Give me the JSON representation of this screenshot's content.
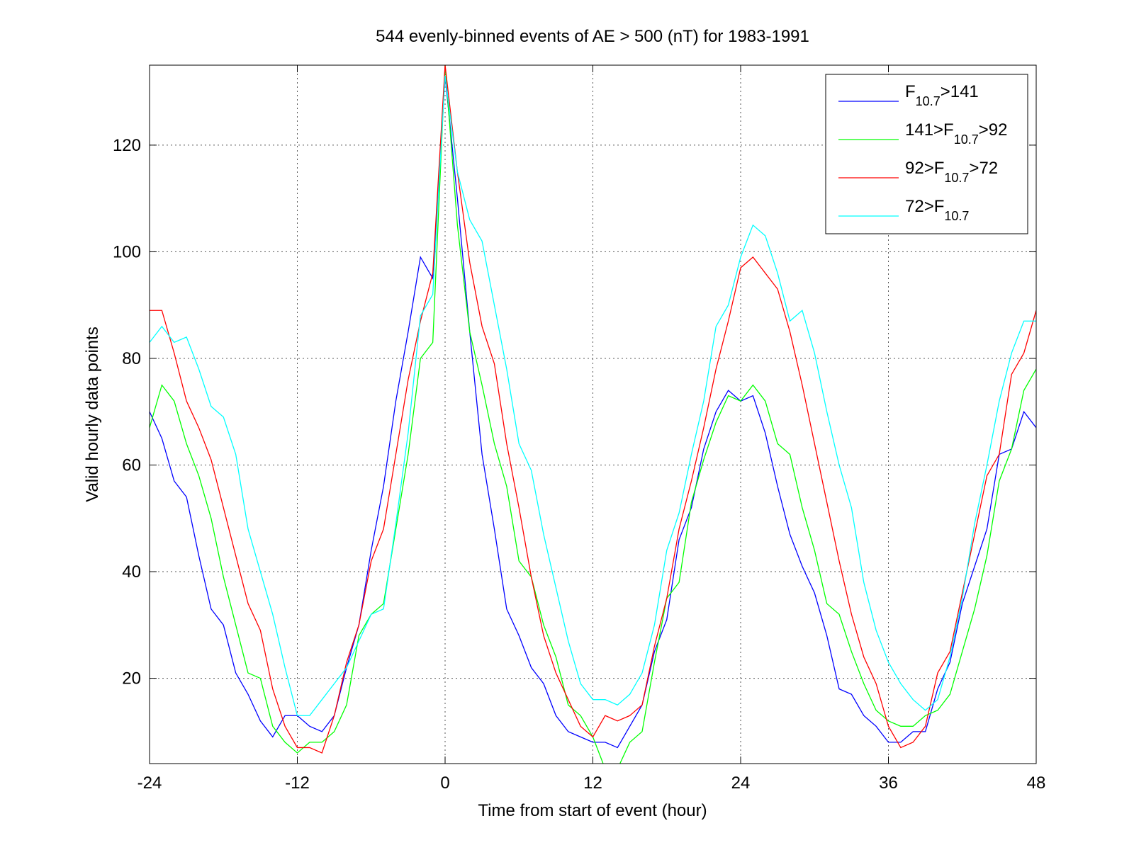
{
  "chart_data": {
    "type": "line",
    "title": "544 evenly-binned events of AE > 500 (nT) for 1983-1991",
    "xlabel": "Time from start of event (hour)",
    "ylabel": "Valid hourly data points",
    "x": [
      -24,
      -23,
      -22,
      -21,
      -20,
      -19,
      -18,
      -17,
      -16,
      -15,
      -14,
      -13,
      -12,
      -11,
      -10,
      -9,
      -8,
      -7,
      -6,
      -5,
      -4,
      -3,
      -2,
      -1,
      0,
      1,
      2,
      3,
      4,
      5,
      6,
      7,
      8,
      9,
      10,
      11,
      12,
      13,
      14,
      15,
      16,
      17,
      18,
      19,
      20,
      21,
      22,
      23,
      24,
      25,
      26,
      27,
      28,
      29,
      30,
      31,
      32,
      33,
      34,
      35,
      36,
      37,
      38,
      39,
      40,
      41,
      42,
      43,
      44,
      45,
      46,
      47,
      48
    ],
    "series": [
      {
        "name": [
          "F",
          "10.7",
          ">141"
        ],
        "color": "#0000ff",
        "values": [
          70,
          65,
          57,
          54,
          43,
          33,
          30,
          21,
          17,
          12,
          9,
          13,
          13,
          11,
          10,
          13,
          22,
          30,
          44,
          56,
          72,
          85,
          99,
          95,
          133,
          110,
          85,
          62,
          48,
          33,
          28,
          22,
          19,
          13,
          10,
          9,
          8,
          8,
          7,
          11,
          15,
          25,
          31,
          46,
          52,
          63,
          70,
          74,
          72,
          73,
          66,
          56,
          47,
          41,
          36,
          28,
          18,
          17,
          13,
          11,
          8,
          8,
          10,
          10,
          18,
          23,
          34,
          41,
          48,
          62,
          63,
          70,
          67
        ]
      },
      {
        "name": [
          "141>F",
          "10.7",
          ">92"
        ],
        "color": "#00ff00",
        "values": [
          67,
          75,
          72,
          64,
          58,
          50,
          39,
          30,
          21,
          20,
          11,
          8,
          6,
          8,
          8,
          10,
          15,
          28,
          32,
          34,
          48,
          62,
          80,
          83,
          135,
          105,
          85,
          75,
          64,
          56,
          42,
          39,
          30,
          24,
          15,
          13,
          9,
          3,
          3,
          8,
          10,
          23,
          35,
          38,
          53,
          61,
          68,
          73,
          72,
          75,
          72,
          64,
          62,
          52,
          44,
          34,
          32,
          25,
          19,
          14,
          12,
          11,
          11,
          13,
          14,
          17,
          25,
          33,
          43,
          57,
          63,
          74,
          78
        ]
      },
      {
        "name": [
          "92>F",
          "10.7",
          ">72"
        ],
        "color": "#ff0000",
        "values": [
          89,
          89,
          81,
          72,
          67,
          61,
          52,
          43,
          34,
          29,
          18,
          11,
          7,
          7,
          6,
          13,
          23,
          30,
          42,
          48,
          62,
          76,
          87,
          96,
          135,
          115,
          98,
          86,
          79,
          64,
          52,
          39,
          28,
          21,
          16,
          11,
          9,
          13,
          12,
          13,
          15,
          26,
          35,
          48,
          57,
          67,
          78,
          87,
          97,
          99,
          96,
          93,
          85,
          75,
          64,
          53,
          42,
          32,
          24,
          19,
          11,
          7,
          8,
          11,
          21,
          25,
          36,
          47,
          58,
          62,
          77,
          81,
          89
        ]
      },
      {
        "name": [
          "72>F",
          "10.7"
        ],
        "color": "#00ffff",
        "values": [
          83,
          86,
          83,
          84,
          78,
          71,
          69,
          62,
          48,
          40,
          32,
          22,
          13,
          13,
          16,
          19,
          22,
          27,
          32,
          33,
          49,
          66,
          88,
          92,
          133,
          115,
          106,
          102,
          90,
          78,
          64,
          59,
          47,
          37,
          27,
          19,
          16,
          16,
          15,
          17,
          21,
          30,
          44,
          51,
          62,
          72,
          86,
          90,
          99,
          105,
          103,
          96,
          87,
          89,
          81,
          70,
          60,
          52,
          38,
          29,
          23,
          19,
          16,
          14,
          16,
          24,
          35,
          49,
          60,
          72,
          81,
          87,
          87
        ]
      }
    ],
    "xlim": [
      -24,
      48
    ],
    "xticks": [
      -24,
      -12,
      0,
      12,
      24,
      36,
      48
    ],
    "ylim": [
      4,
      135
    ],
    "yticks": [
      20,
      40,
      60,
      80,
      100,
      120
    ],
    "grid": true,
    "legend": "upper right"
  }
}
